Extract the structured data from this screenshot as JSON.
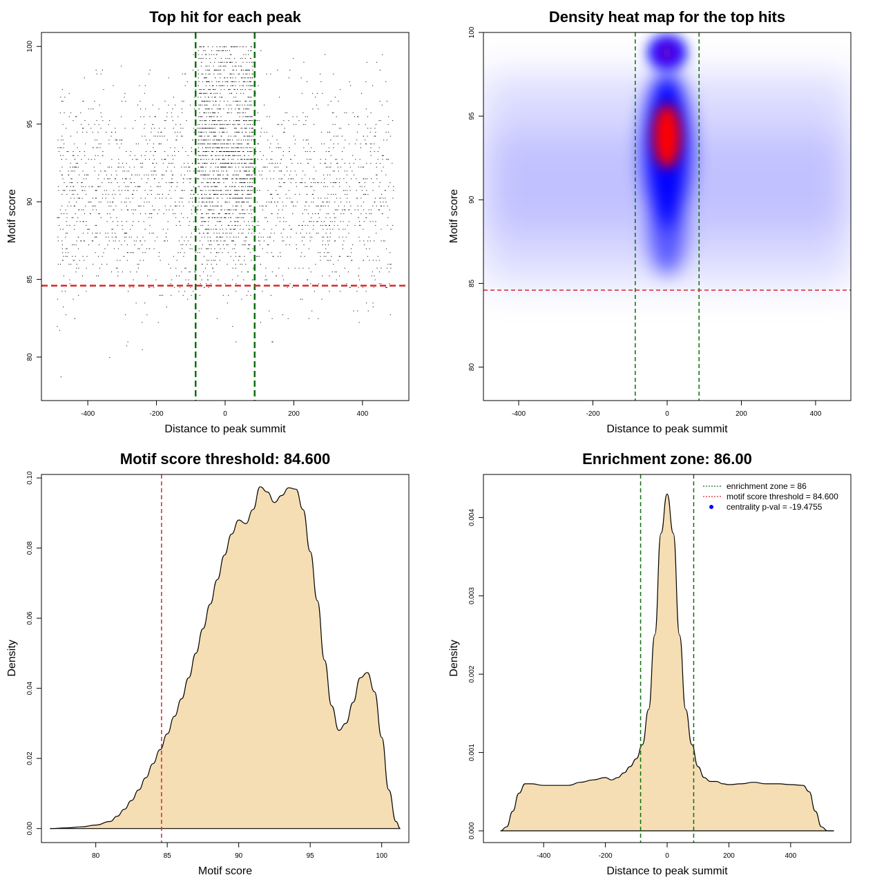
{
  "chart_data": [
    {
      "type": "scatter",
      "title": "Top hit for each peak",
      "xlabel": "Distance to peak summit",
      "ylabel": "Motif score",
      "xlim": [
        -535,
        535
      ],
      "ylim": [
        77.2,
        100.9
      ],
      "xticks": [
        -400,
        -200,
        0,
        200,
        400
      ],
      "yticks": [
        80,
        85,
        90,
        95,
        100
      ],
      "x_range_of_points": [
        -490,
        490
      ],
      "central_x_range": [
        -80,
        80
      ],
      "vlines": [
        -86,
        86
      ],
      "hline": 84.6,
      "line_colors": {
        "vline": "#0b6e0b",
        "hline": "#d62728"
      },
      "point_color": "#000000",
      "approx_point_count": 9000
    },
    {
      "type": "heatmap",
      "title": "Density heat map for the top hits",
      "xlabel": "Distance to peak summit",
      "ylabel": "Motif score",
      "xlim": [
        -495,
        495
      ],
      "ylim": [
        78,
        100
      ],
      "xticks": [
        -400,
        -200,
        0,
        200,
        400
      ],
      "yticks": [
        80,
        85,
        90,
        95,
        100
      ],
      "vlines": [
        -86,
        86
      ],
      "hline": 84.6,
      "hotspots": [
        {
          "x": 0,
          "y": 93.8,
          "level": "high"
        },
        {
          "x": 0,
          "y": 98.8,
          "level": "medium"
        }
      ],
      "colors": {
        "low": "#ffffff",
        "mid": "#0000ff",
        "high": "#ff0000"
      }
    },
    {
      "type": "area",
      "title": "Motif score threshold: 84.600",
      "xlabel": "Motif score",
      "ylabel": "Density",
      "xlim": [
        76.2,
        101.9
      ],
      "ylim": [
        -0.004,
        0.101
      ],
      "xticks": [
        80,
        85,
        90,
        95,
        100
      ],
      "yticks": [
        0.0,
        0.02,
        0.04,
        0.06,
        0.08,
        0.1
      ],
      "ytick_labels": [
        "0.00",
        "0.02",
        "0.04",
        "0.06",
        "0.08",
        "0.10"
      ],
      "vline": 84.6,
      "fill": "#f5deb3",
      "x": [
        76.8,
        78,
        79,
        80,
        81,
        81.5,
        82,
        82.5,
        83,
        83.5,
        84,
        84.5,
        85,
        85.5,
        86,
        86.5,
        87,
        87.5,
        88,
        88.5,
        89,
        89.5,
        90,
        90.5,
        91,
        91.5,
        92,
        92.5,
        93,
        93.5,
        94,
        94.5,
        95,
        95.5,
        96,
        96.5,
        97,
        97.5,
        98,
        98.5,
        99,
        99.5,
        100,
        100.5,
        101,
        101.3
      ],
      "y": [
        0.0,
        0.0002,
        0.0005,
        0.001,
        0.002,
        0.0035,
        0.0055,
        0.008,
        0.011,
        0.0145,
        0.0185,
        0.0225,
        0.027,
        0.032,
        0.037,
        0.043,
        0.05,
        0.057,
        0.064,
        0.071,
        0.078,
        0.084,
        0.088,
        0.087,
        0.091,
        0.0975,
        0.096,
        0.093,
        0.095,
        0.0972,
        0.0968,
        0.091,
        0.079,
        0.065,
        0.048,
        0.035,
        0.028,
        0.03,
        0.036,
        0.043,
        0.0445,
        0.039,
        0.026,
        0.011,
        0.002,
        0.0
      ]
    },
    {
      "type": "area",
      "title": "Enrichment zone: 86.00",
      "xlabel": "Distance to peak summit",
      "ylabel": "Density",
      "xlim": [
        -595,
        595
      ],
      "ylim": [
        -0.00015,
        0.00455
      ],
      "xticks": [
        -400,
        -200,
        0,
        200,
        400
      ],
      "yticks": [
        0.0,
        0.001,
        0.002,
        0.003,
        0.004
      ],
      "ytick_labels": [
        "0.000",
        "0.001",
        "0.002",
        "0.003",
        "0.004"
      ],
      "vlines": [
        -86,
        86
      ],
      "fill": "#f5deb3",
      "legend": {
        "position": "top-right",
        "entries": [
          {
            "label": "enrichment zone = 86",
            "style": "dotted",
            "color": "#0b6e0b"
          },
          {
            "label": "motif score threshold = 84.600",
            "style": "dotted",
            "color": "#d62728"
          },
          {
            "label": "centrality p-val = -19.4755",
            "style": "point",
            "color": "#0000ff"
          }
        ]
      },
      "x": [
        -540,
        -520,
        -500,
        -480,
        -460,
        -440,
        -400,
        -360,
        -320,
        -280,
        -240,
        -200,
        -180,
        -160,
        -140,
        -120,
        -100,
        -80,
        -60,
        -40,
        -20,
        0,
        20,
        40,
        60,
        80,
        100,
        120,
        140,
        160,
        180,
        200,
        240,
        280,
        320,
        360,
        400,
        440,
        460,
        480,
        500,
        520,
        540
      ],
      "y": [
        0.0,
        5e-05,
        0.00025,
        0.00048,
        0.0006,
        0.0006,
        0.00058,
        0.00058,
        0.00058,
        0.00062,
        0.00065,
        0.00068,
        0.00065,
        0.00068,
        0.00074,
        0.00082,
        0.00092,
        0.0011,
        0.00155,
        0.0025,
        0.0038,
        0.0043,
        0.0038,
        0.0025,
        0.00155,
        0.0011,
        0.00082,
        0.00068,
        0.00063,
        0.00063,
        0.0006,
        0.00059,
        0.0006,
        0.00062,
        0.0006,
        0.0006,
        0.00059,
        0.00058,
        0.0005,
        0.00025,
        5e-05,
        0.0,
        0.0
      ]
    }
  ]
}
